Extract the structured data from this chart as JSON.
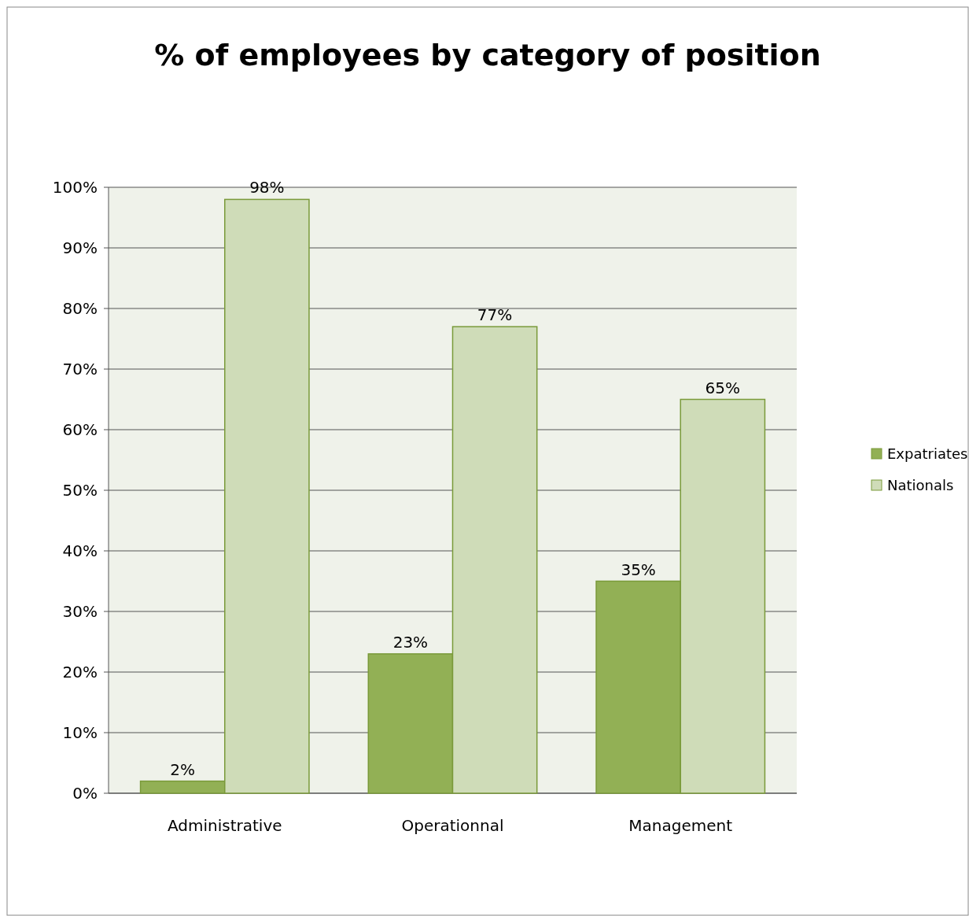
{
  "chart_data": {
    "type": "bar",
    "title": "% of employees by category of position",
    "categories": [
      "Administrative",
      "Operationnal",
      "Management"
    ],
    "series": [
      {
        "name": "Expatriates",
        "color": "#92b055",
        "values": [
          2,
          23,
          35
        ]
      },
      {
        "name": "Nationals",
        "color": "#cfdcb8",
        "values": [
          98,
          77,
          65
        ]
      }
    ],
    "ylim": [
      0,
      100
    ],
    "yticks": [
      {
        "value": 0,
        "label": "0%"
      },
      {
        "value": 10,
        "label": "10%"
      },
      {
        "value": 20,
        "label": "20%"
      },
      {
        "value": 30,
        "label": "30%"
      },
      {
        "value": 40,
        "label": "40%"
      },
      {
        "value": 50,
        "label": "50%"
      },
      {
        "value": 60,
        "label": "60%"
      },
      {
        "value": 70,
        "label": "70%"
      },
      {
        "value": 80,
        "label": "80%"
      },
      {
        "value": 90,
        "label": "90%"
      },
      {
        "value": 100,
        "label": "100%"
      }
    ],
    "value_labels": [
      [
        "2%",
        "23%",
        "35%"
      ],
      [
        "98%",
        "77%",
        "65%"
      ]
    ],
    "grid": "y",
    "legend": "right"
  }
}
